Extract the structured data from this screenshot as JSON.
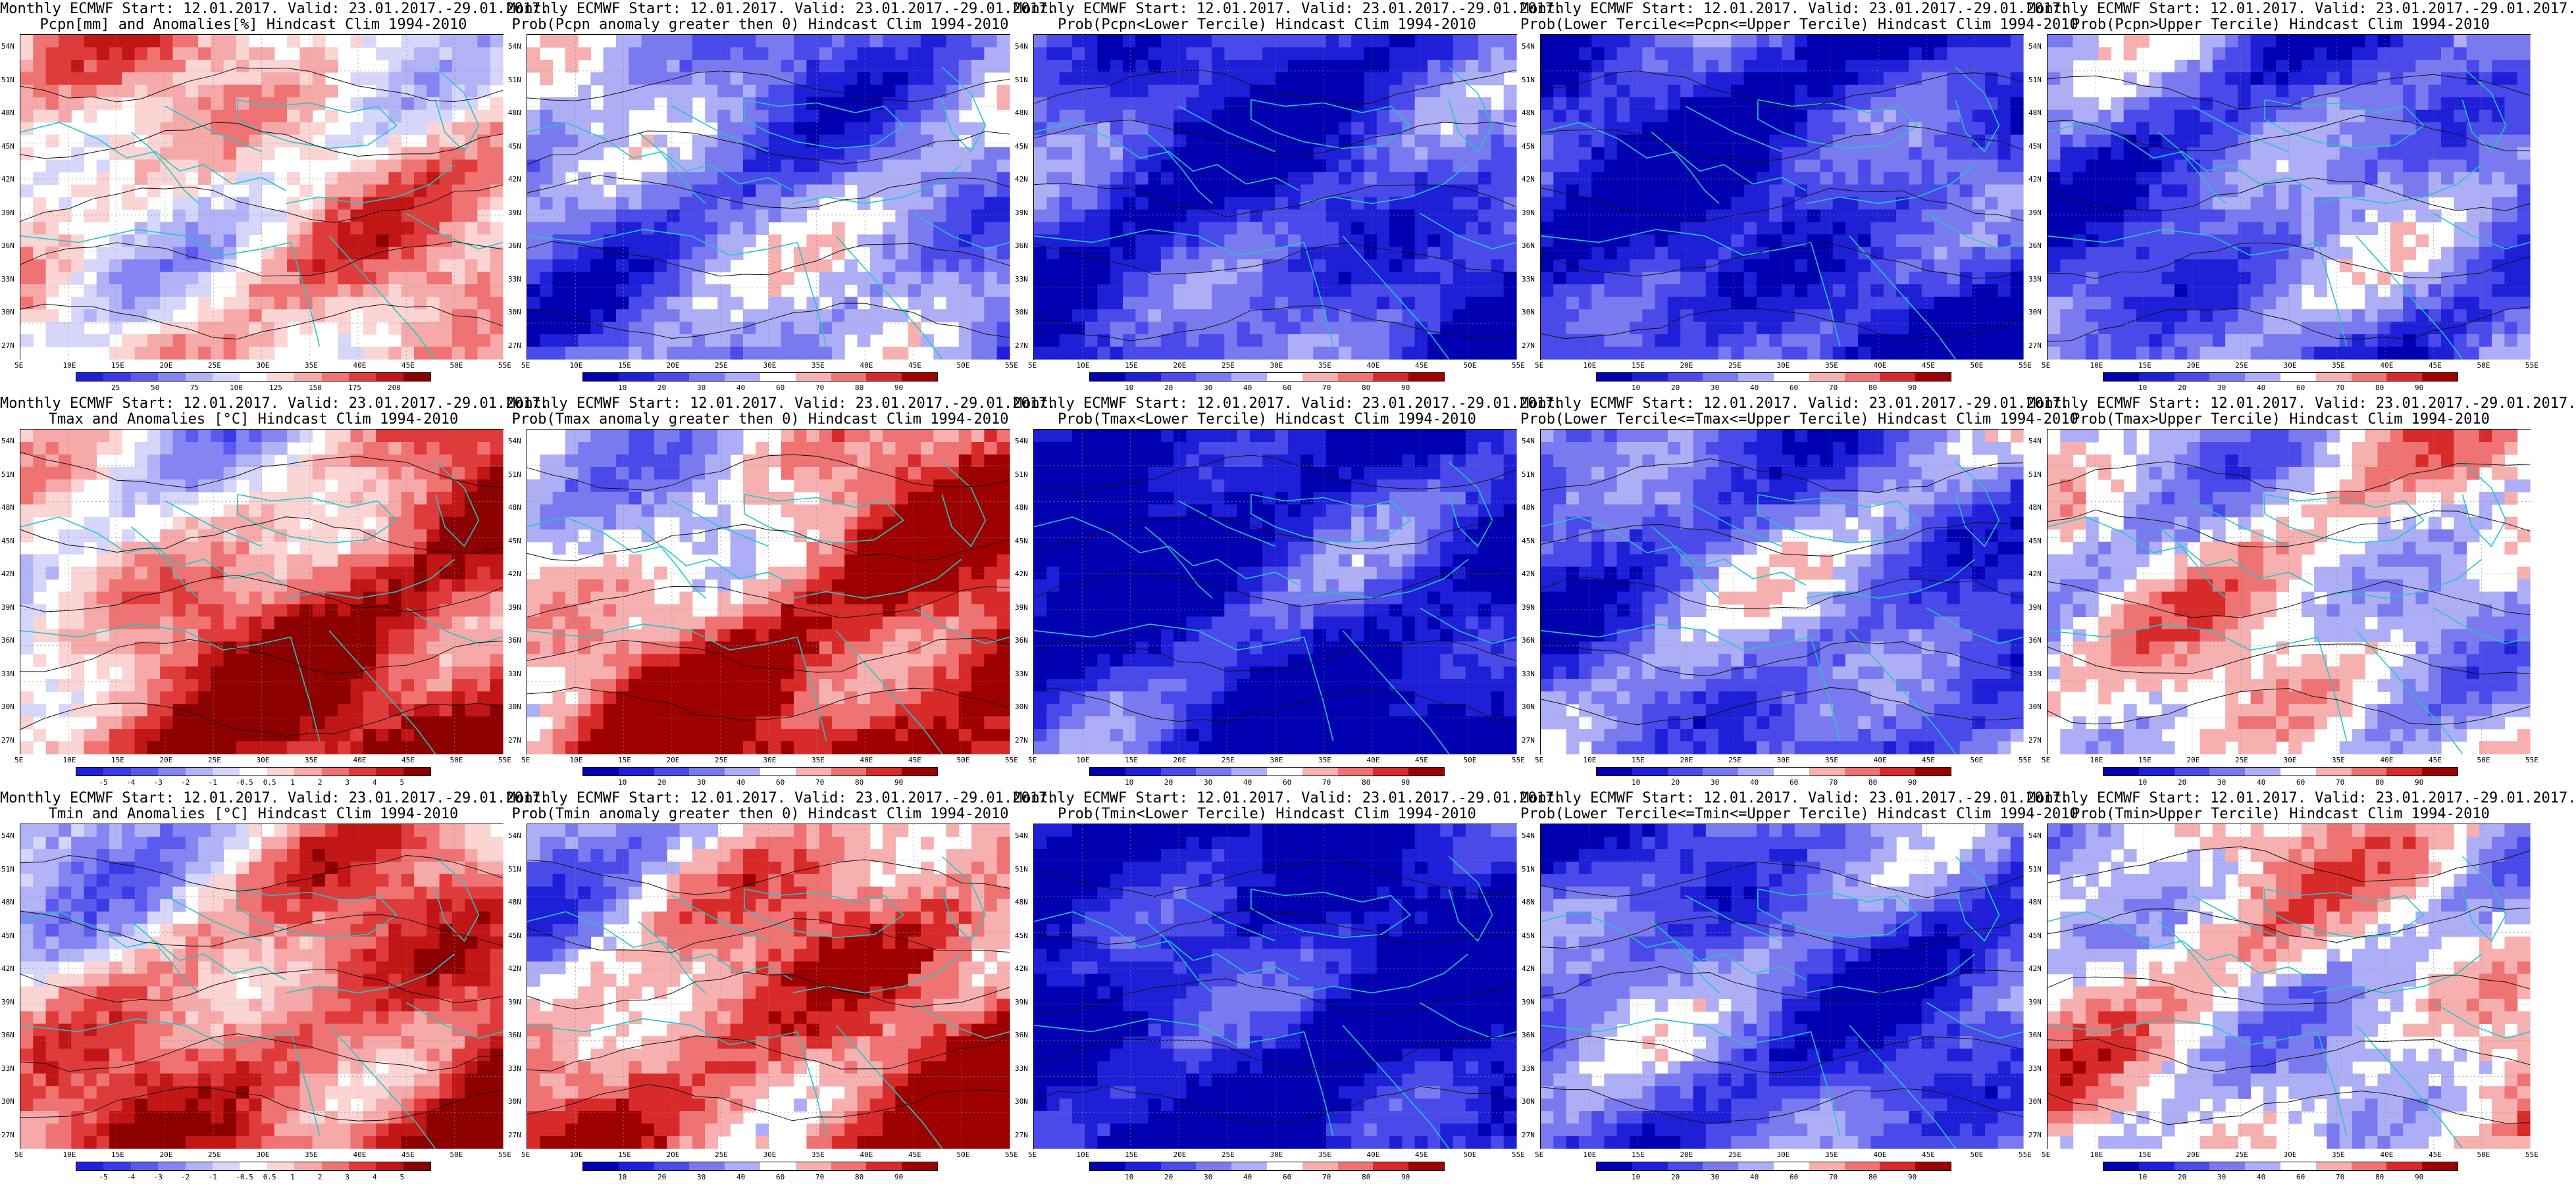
{
  "x_ticks": [
    "5E",
    "10E",
    "15E",
    "20E",
    "25E",
    "30E",
    "35E",
    "40E",
    "45E",
    "50E",
    "55E"
  ],
  "y_ticks": [
    "54N",
    "51N",
    "48N",
    "45N",
    "42N",
    "39N",
    "36N",
    "33N",
    "30N",
    "27N"
  ],
  "palettes": {
    "anom_pcpn": [
      "#1f1fd8",
      "#3a3ae6",
      "#5a5aee",
      "#8484f2",
      "#b2b2f7",
      "#d6d6fb",
      "#ffffff",
      "#fbd4d4",
      "#f6a9a9",
      "#ef7373",
      "#e03b3b",
      "#c21515",
      "#8c0000"
    ],
    "anom_temp": [
      "#1f1fd8",
      "#3a3ae6",
      "#5a5aee",
      "#8484f2",
      "#b2b2f7",
      "#d6d6fb",
      "#ffffff",
      "#fbd4d4",
      "#f6a9a9",
      "#ef7373",
      "#e03b3b",
      "#c21515",
      "#8c0000"
    ],
    "prob": [
      "#0000b0",
      "#1f1fd8",
      "#4a4aea",
      "#7a7af0",
      "#aeaef6",
      "#ffffff",
      "#f7b0b0",
      "#ef7373",
      "#d92a2a",
      "#9e0000"
    ]
  },
  "panels": [
    {
      "row": 0,
      "col": 0,
      "title1": "Monthly ECMWF Start: 12.01.2017. Valid: 23.01.2017.-29.01.2017.",
      "title2": "Pcpn[mm] and Anomalies[%] Hindcast Clim 1994-2010",
      "palette": "anom_pcpn",
      "cbar_labels": [
        "25",
        "50",
        "75",
        "100",
        "125",
        "150",
        "175",
        "200"
      ],
      "bias": 0.15
    },
    {
      "row": 0,
      "col": 1,
      "title1": "Monthly ECMWF Start: 12.01.2017. Valid: 23.01.2017.-29.01.2017.",
      "title2": "Prob(Pcpn anomaly greater then 0) Hindcast Clim 1994-2010",
      "palette": "prob",
      "cbar_labels": [
        "10",
        "20",
        "30",
        "40",
        "60",
        "70",
        "80",
        "90"
      ],
      "bias": -0.25
    },
    {
      "row": 0,
      "col": 2,
      "title1": "Monthly ECMWF Start: 12.01.2017. Valid: 23.01.2017.-29.01.2017.",
      "title2": "Prob(Pcpn<Lower Tercile) Hindcast Clim 1994-2010",
      "palette": "prob",
      "cbar_labels": [
        "10",
        "20",
        "30",
        "40",
        "60",
        "70",
        "80",
        "90"
      ],
      "bias": -0.55
    },
    {
      "row": 0,
      "col": 3,
      "title1": "Monthly ECMWF Start: 12.01.2017. Valid: 23.01.2017.-29.01.2017.",
      "title2": "Prob(Lower Tercile<=Pcpn<=Upper Tercile) Hindcast Clim 1994-2010",
      "palette": "prob",
      "cbar_labels": [
        "10",
        "20",
        "30",
        "40",
        "60",
        "70",
        "80",
        "90"
      ],
      "bias": -0.6
    },
    {
      "row": 0,
      "col": 4,
      "title1": "Monthly ECMWF Start: 12.01.2017. Valid: 23.01.2017.-29.01.2017.",
      "title2": "Prob(Pcpn>Upper Tercile) Hindcast Clim 1994-2010",
      "palette": "prob",
      "cbar_labels": [
        "10",
        "20",
        "30",
        "40",
        "60",
        "70",
        "80",
        "90"
      ],
      "bias": -0.35
    },
    {
      "row": 1,
      "col": 0,
      "title1": "Monthly ECMWF Start: 12.01.2017. Valid: 23.01.2017.-29.01.2017.",
      "title2": "Tmax and Anomalies [°C] Hindcast Clim 1994-2010",
      "palette": "anom_temp",
      "cbar_labels": [
        "-5",
        "-4",
        "-3",
        "-2",
        "-1",
        "-0.5",
        "0.5",
        "1",
        "2",
        "3",
        "4",
        "5"
      ],
      "bias": 0.35
    },
    {
      "row": 1,
      "col": 1,
      "title1": "Monthly ECMWF Start: 12.01.2017. Valid: 23.01.2017.-29.01.2017.",
      "title2": "Prob(Tmax anomaly greater then 0) Hindcast Clim 1994-2010",
      "palette": "prob",
      "cbar_labels": [
        "10",
        "20",
        "30",
        "40",
        "60",
        "70",
        "80",
        "90"
      ],
      "bias": 0.4
    },
    {
      "row": 1,
      "col": 2,
      "title1": "Monthly ECMWF Start: 12.01.2017. Valid: 23.01.2017.-29.01.2017.",
      "title2": "Prob(Tmax<Lower Tercile) Hindcast Clim 1994-2010",
      "palette": "prob",
      "cbar_labels": [
        "10",
        "20",
        "30",
        "40",
        "60",
        "70",
        "80",
        "90"
      ],
      "bias": -0.7
    },
    {
      "row": 1,
      "col": 3,
      "title1": "Monthly ECMWF Start: 12.01.2017. Valid: 23.01.2017.-29.01.2017.",
      "title2": "Prob(Lower Tercile<=Tmax<=Upper Tercile) Hindcast Clim 1994-2010",
      "palette": "prob",
      "cbar_labels": [
        "10",
        "20",
        "30",
        "40",
        "60",
        "70",
        "80",
        "90"
      ],
      "bias": -0.35
    },
    {
      "row": 1,
      "col": 4,
      "title1": "Monthly ECMWF Start: 12.01.2017. Valid: 23.01.2017.-29.01.2017.",
      "title2": "Prob(Tmax>Upper Tercile) Hindcast Clim 1994-2010",
      "palette": "prob",
      "cbar_labels": [
        "10",
        "20",
        "30",
        "40",
        "60",
        "70",
        "80",
        "90"
      ],
      "bias": 0.05
    },
    {
      "row": 2,
      "col": 0,
      "title1": "Monthly ECMWF Start: 12.01.2017. Valid: 23.01.2017.-29.01.2017.",
      "title2": "Tmin and Anomalies [°C] Hindcast Clim 1994-2010",
      "palette": "anom_temp",
      "cbar_labels": [
        "-5",
        "-4",
        "-3",
        "-2",
        "-1",
        "-0.5",
        "0.5",
        "1",
        "2",
        "3",
        "4",
        "5"
      ],
      "bias": 0.3
    },
    {
      "row": 2,
      "col": 1,
      "title1": "Monthly ECMWF Start: 12.01.2017. Valid: 23.01.2017.-29.01.2017.",
      "title2": "Prob(Tmin anomaly greater then 0) Hindcast Clim 1994-2010",
      "palette": "prob",
      "cbar_labels": [
        "10",
        "20",
        "30",
        "40",
        "60",
        "70",
        "80",
        "90"
      ],
      "bias": 0.35
    },
    {
      "row": 2,
      "col": 2,
      "title1": "Monthly ECMWF Start: 12.01.2017. Valid: 23.01.2017.-29.01.2017.",
      "title2": "Prob(Tmin<Lower Tercile) Hindcast Clim 1994-2010",
      "palette": "prob",
      "cbar_labels": [
        "10",
        "20",
        "30",
        "40",
        "60",
        "70",
        "80",
        "90"
      ],
      "bias": -0.75
    },
    {
      "row": 2,
      "col": 3,
      "title1": "Monthly ECMWF Start: 12.01.2017. Valid: 23.01.2017.-29.01.2017.",
      "title2": "Prob(Lower Tercile<=Tmin<=Upper Tercile) Hindcast Clim 1994-2010",
      "palette": "prob",
      "cbar_labels": [
        "10",
        "20",
        "30",
        "40",
        "60",
        "70",
        "80",
        "90"
      ],
      "bias": -0.4
    },
    {
      "row": 2,
      "col": 4,
      "title1": "Monthly ECMWF Start: 12.01.2017. Valid: 23.01.2017.-29.01.2017.",
      "title2": "Prob(Tmin>Upper Tercile) Hindcast Clim 1994-2010",
      "palette": "prob",
      "cbar_labels": [
        "10",
        "20",
        "30",
        "40",
        "60",
        "70",
        "80",
        "90"
      ],
      "bias": 0.1
    }
  ]
}
